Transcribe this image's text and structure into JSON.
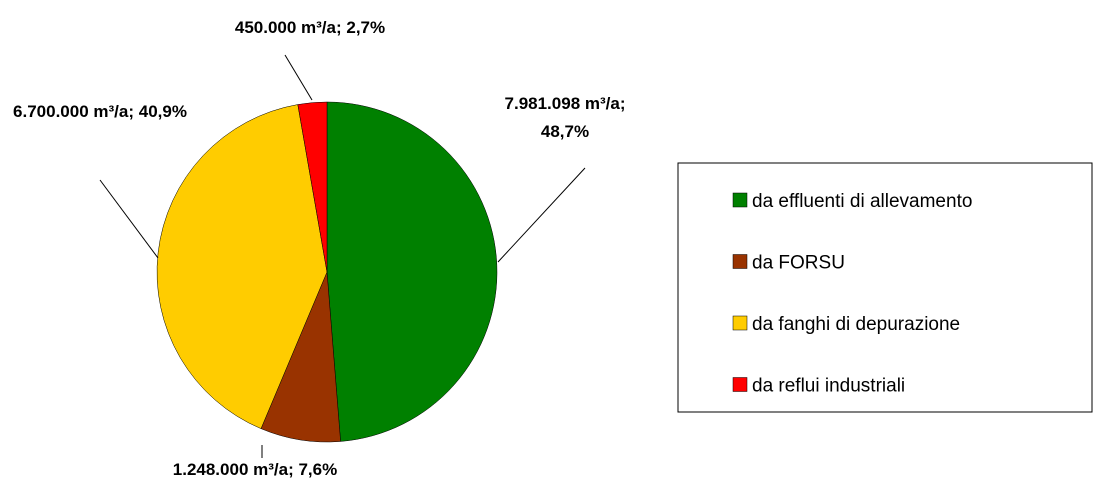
{
  "chart_data": {
    "type": "pie",
    "categories": [
      "da effluenti di allevamento",
      "da FORSU",
      "da fanghi di depurazione",
      "da reflui industriali"
    ],
    "values": [
      7981098,
      1248000,
      6700000,
      450000
    ],
    "value_labels": [
      "7.981.098 m³/a; 48,7%",
      "1.248.000 m³/a; 7,6%",
      "6.700.000 m³/a; 40,9%",
      "450.000 m³/a; 2,7%"
    ],
    "colors": [
      "#008000",
      "#993300",
      "#ffcc00",
      "#ff0000"
    ],
    "legend": "right"
  }
}
